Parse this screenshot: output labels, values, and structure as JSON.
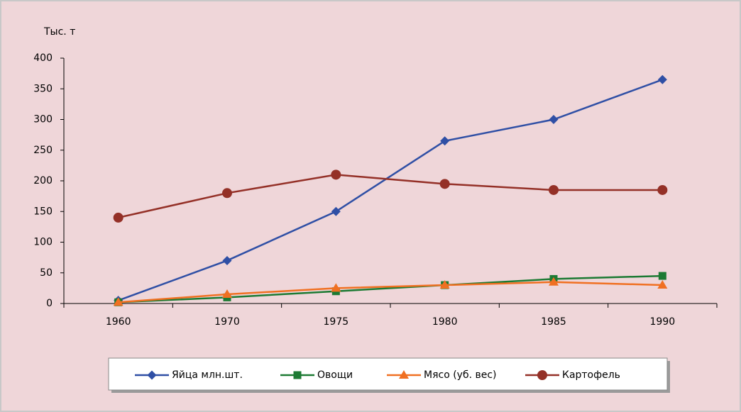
{
  "chart_data": {
    "type": "line",
    "y_label": "Тыс. т",
    "categories": [
      "1960",
      "1970",
      "1975",
      "1980",
      "1985",
      "1990"
    ],
    "series": [
      {
        "name": "Яйца млн.шт.",
        "color": "#2f4fa5",
        "marker": "diamond",
        "values": [
          5,
          70,
          150,
          265,
          300,
          365
        ]
      },
      {
        "name": "Овощи",
        "color": "#1c7a33",
        "marker": "square",
        "values": [
          2,
          10,
          20,
          30,
          40,
          45
        ]
      },
      {
        "name": "Мясо (уб. вес)",
        "color": "#f07022",
        "marker": "triangle",
        "values": [
          2,
          15,
          25,
          30,
          35,
          30
        ]
      },
      {
        "name": "Картофель",
        "color": "#943027",
        "marker": "circle",
        "values": [
          140,
          180,
          210,
          195,
          185,
          185
        ]
      }
    ],
    "ylim": [
      0,
      400
    ],
    "yticks": [
      0,
      50,
      100,
      150,
      200,
      250,
      300,
      350,
      400
    ],
    "grid": false,
    "legend": "bottom"
  }
}
